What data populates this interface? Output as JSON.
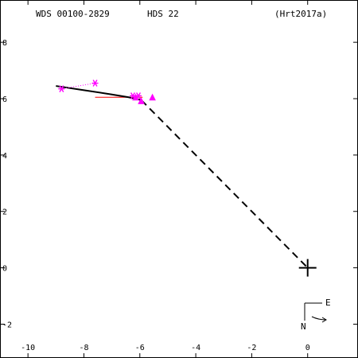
{
  "header": {
    "wds": "WDS 00100-2829",
    "discoverer": "HDS  22",
    "reference": "(Hrt2017a)"
  },
  "compass": {
    "east": "E",
    "north": "N"
  },
  "colors": {
    "axes": "#000000",
    "measures": "#ff00ff",
    "residual": "#ff0000",
    "orbit": "#000000"
  },
  "chart_data": {
    "type": "scatter",
    "title": "",
    "xlabel": "",
    "ylabel": "",
    "xlim": [
      -11.0,
      1.8
    ],
    "ylim": [
      -3.2,
      9.5
    ],
    "xticks": [
      {
        "v": -10,
        "label": "-10"
      },
      {
        "v": -8,
        "label": "-8"
      },
      {
        "v": -6,
        "label": "-6"
      },
      {
        "v": -4,
        "label": "-4"
      },
      {
        "v": -2,
        "label": "-2"
      },
      {
        "v": 0,
        "label": "0"
      }
    ],
    "yticks": [
      {
        "v": 8,
        "label": "8"
      },
      {
        "v": 6,
        "label": "6"
      },
      {
        "v": 4,
        "label": "4"
      },
      {
        "v": 2,
        "label": "2"
      },
      {
        "v": 0,
        "label": "0"
      },
      {
        "v": -2,
        "label": "-2"
      }
    ],
    "primary": [
      0,
      0
    ],
    "orbit_arc": [
      [
        -9.0,
        6.45
      ],
      [
        -8.0,
        6.3
      ],
      [
        -7.0,
        6.15
      ],
      [
        -6.4,
        6.05
      ],
      [
        -5.95,
        5.95
      ]
    ],
    "node_line": [
      [
        -5.95,
        5.95
      ],
      [
        0.0,
        0.0
      ]
    ],
    "residual_line": [
      [
        -7.6,
        6.05
      ],
      [
        -5.9,
        6.05
      ]
    ],
    "measures": [
      {
        "marker": "asterisk",
        "x": -8.8,
        "y": 6.35
      },
      {
        "marker": "asterisk",
        "x": -7.6,
        "y": 6.55
      },
      {
        "marker": "asterisk",
        "x": -6.25,
        "y": 6.1
      },
      {
        "marker": "asterisk",
        "x": -6.05,
        "y": 6.1
      },
      {
        "marker": "triangle",
        "x": -6.15,
        "y": 6.05
      },
      {
        "marker": "triangle",
        "x": -5.95,
        "y": 5.92
      },
      {
        "marker": "triangle",
        "x": -5.55,
        "y": 6.05
      }
    ],
    "measure_links": [
      [
        [
          -8.8,
          6.35
        ],
        [
          -7.6,
          6.55
        ]
      ]
    ],
    "grid": false
  }
}
